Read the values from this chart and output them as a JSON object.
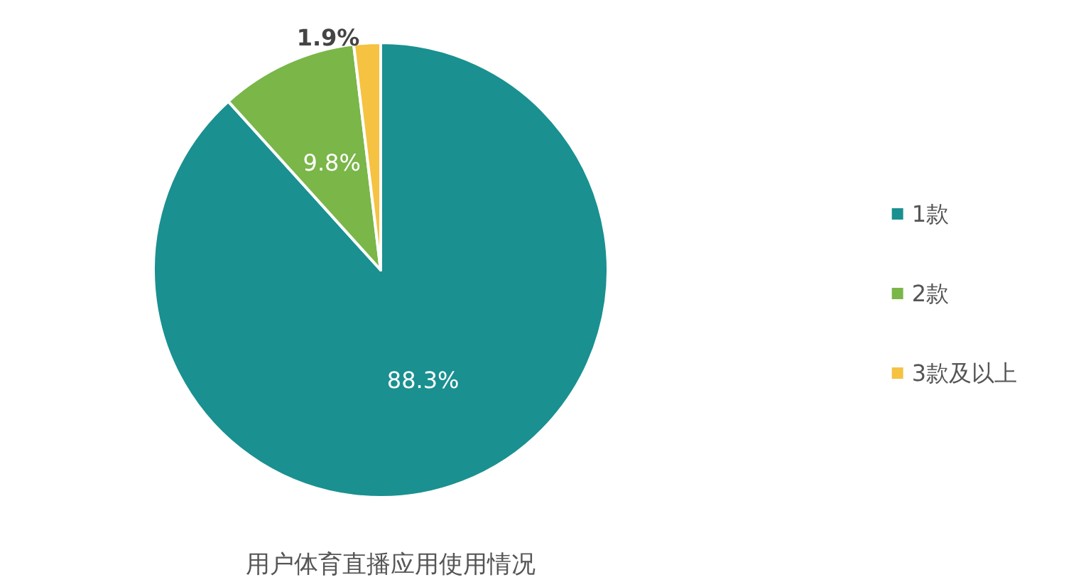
{
  "chart_data": {
    "type": "pie",
    "title": "用户体育直播应用使用情况",
    "categories": [
      "1款",
      "2款",
      "3款及以上"
    ],
    "values": [
      88.3,
      9.8,
      1.9
    ],
    "colors": [
      "#1a9090",
      "#7ab648",
      "#f5c242"
    ],
    "value_labels": [
      "88.3%",
      "9.8%",
      "1.9%"
    ],
    "legend": "right"
  }
}
